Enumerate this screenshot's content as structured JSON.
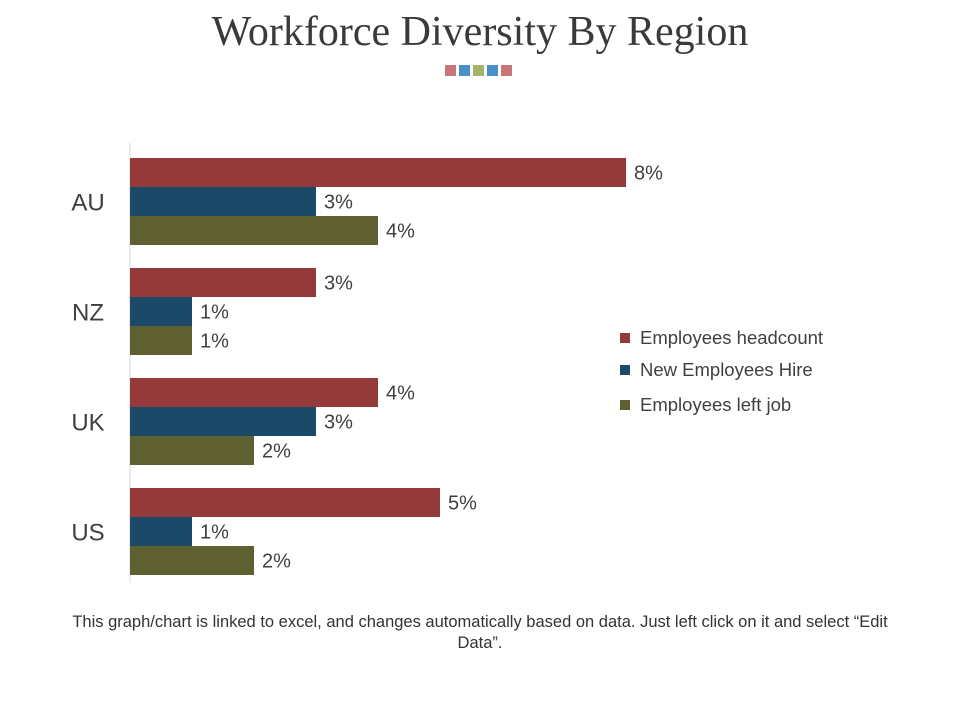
{
  "title": "Workforce Diversity By Region",
  "title_decoration_colors": [
    "#c9747a",
    "#4a90c8",
    "#a6b36b",
    "#4a90c8",
    "#c9747a"
  ],
  "footer": "This graph/chart is linked to excel, and changes automatically based on data. Just left click on it and select “Edit Data”.",
  "chart_data": {
    "type": "bar",
    "orientation": "horizontal",
    "categories": [
      "AU",
      "NZ",
      "UK",
      "US"
    ],
    "series": [
      {
        "name": "Employees headcount",
        "color": "#943a3a",
        "values": [
          8,
          3,
          4,
          5
        ],
        "labels": [
          "8%",
          "3%",
          "4%",
          "5%"
        ]
      },
      {
        "name": "New Employees Hire",
        "color": "#1b4a68",
        "values": [
          3,
          1,
          3,
          1
        ],
        "labels": [
          "3%",
          "1%",
          "3%",
          "1%"
        ]
      },
      {
        "name": "Employees left job",
        "color": "#5e6032",
        "values": [
          4,
          1,
          2,
          2
        ],
        "labels": [
          "4%",
          "1%",
          "2%",
          "2%"
        ]
      }
    ],
    "xlim": [
      0,
      8
    ],
    "grid": false,
    "legend_position": "right"
  }
}
